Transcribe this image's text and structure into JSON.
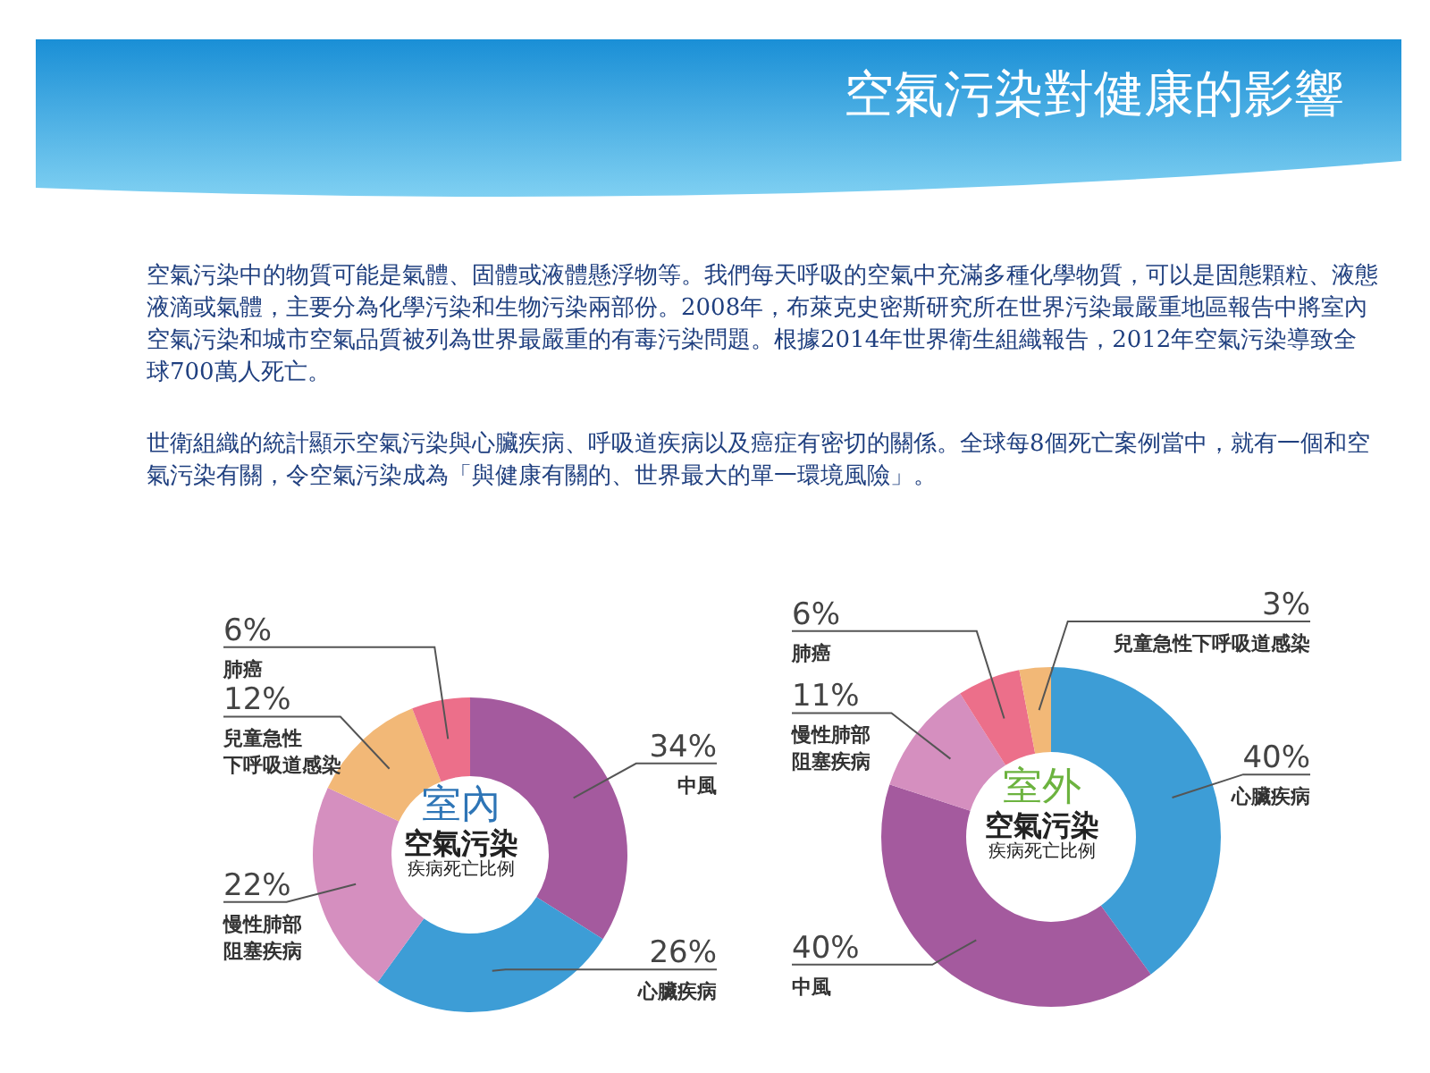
{
  "chart_data": [
    {
      "type": "other",
      "title": "空氣污染對健康的影響",
      "annotations": [
        "空氣污染中的物質可能是氣體、固體或液體懸浮物等。我們每天呼吸的空氣中充滿多種化學物質，可以是固態顆粒、液態液滴或氣體，主要分為化學污染和生物污染兩部份。2008年，布萊克史密斯研究所在世界污染最嚴重地區報告中將室內空氣污染和城市空氣品質被列為世界最嚴重的有毒污染問題。根據2014年世界衛生組織報告，2012年空氣污染導致全球700萬人死亡。",
        "世衛組織的統計顯示空氣污染與心臟疾病、呼吸道疾病以及癌症有密切的關係。全球每8個死亡案例當中，就有一個和空氣污染有關，令空氣污染成為「與健康有關的、世界最大的單一環境風險」。"
      ]
    },
    {
      "type": "donut",
      "categories": [
        "中風",
        "心臟疾病",
        "慢性肺部阻塞疾病",
        "兒童急性下呼吸道感染",
        "肺癌"
      ],
      "values": [
        34,
        26,
        22,
        12,
        6
      ],
      "value_labels": [
        "34%",
        "26%",
        "22%",
        "12%",
        "6%"
      ],
      "colors": [
        "#a45a9e",
        "#3d9dd6",
        "#d58fbf",
        "#f2b877",
        "#ec6f8a"
      ],
      "annotations": [
        "室內",
        "空氣污染",
        "疾病死亡比例"
      ]
    },
    {
      "type": "donut",
      "categories": [
        "心臟疾病",
        "中風",
        "慢性肺部阻塞疾病",
        "肺癌",
        "兒童急性下呼吸道感染"
      ],
      "values": [
        40,
        40,
        11,
        6,
        3
      ],
      "value_labels": [
        "40%",
        "40%",
        "11%",
        "6%",
        "3%"
      ],
      "colors": [
        "#3d9dd6",
        "#a45a9e",
        "#d58fbf",
        "#ec6f8a",
        "#f2b877"
      ],
      "annotations": [
        "室外",
        "空氣污染",
        "疾病死亡比例"
      ]
    }
  ]
}
